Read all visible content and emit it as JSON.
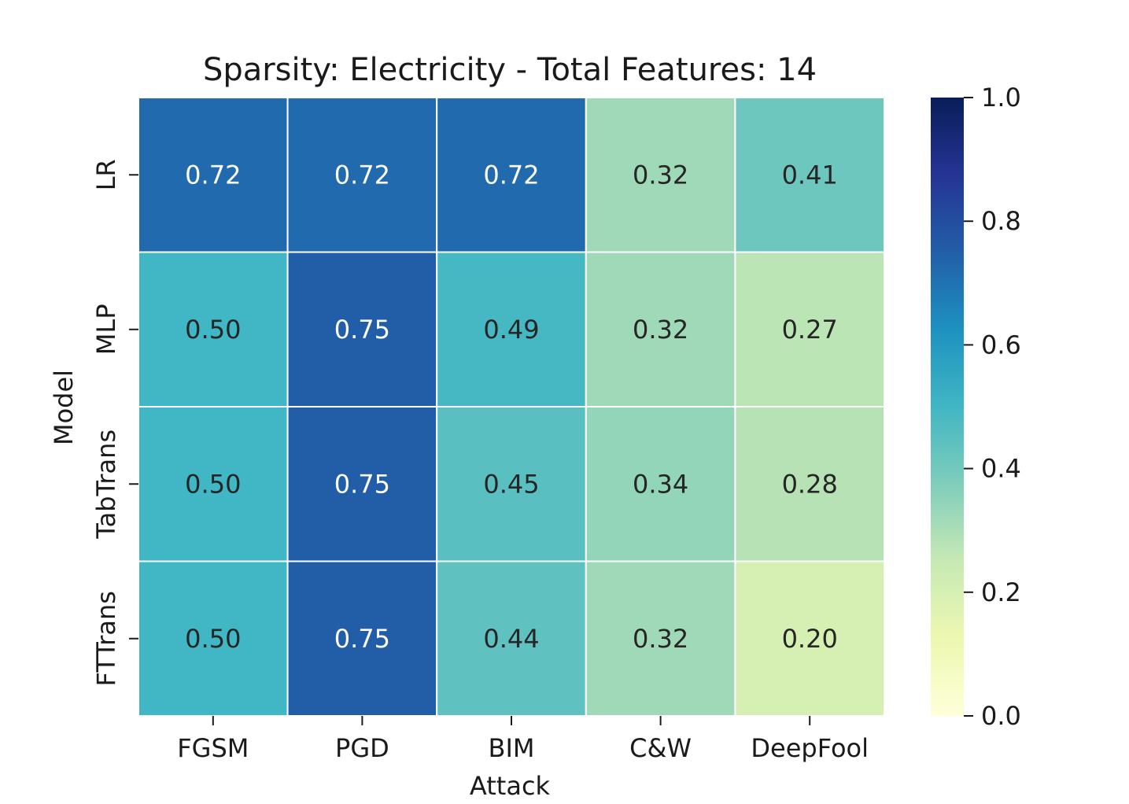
{
  "chart_data": {
    "type": "heatmap",
    "title": "Sparsity: Electricity - Total Features: 14",
    "xlabel": "Attack",
    "ylabel": "Model",
    "x_categories": [
      "FGSM",
      "PGD",
      "BIM",
      "C&W",
      "DeepFool"
    ],
    "y_categories": [
      "LR",
      "MLP",
      "TabTrans",
      "FTTrans"
    ],
    "values": [
      [
        0.72,
        0.72,
        0.72,
        0.32,
        0.41
      ],
      [
        0.5,
        0.75,
        0.49,
        0.32,
        0.27
      ],
      [
        0.5,
        0.75,
        0.45,
        0.34,
        0.28
      ],
      [
        0.5,
        0.75,
        0.44,
        0.32,
        0.2
      ]
    ],
    "value_labels": [
      [
        "0.72",
        "0.72",
        "0.72",
        "0.32",
        "0.41"
      ],
      [
        "0.50",
        "0.75",
        "0.49",
        "0.32",
        "0.27"
      ],
      [
        "0.50",
        "0.75",
        "0.45",
        "0.34",
        "0.28"
      ],
      [
        "0.50",
        "0.75",
        "0.44",
        "0.32",
        "0.20"
      ]
    ],
    "colorbar": {
      "range": [
        0.0,
        1.0
      ],
      "ticks": [
        "0.0",
        "0.2",
        "0.4",
        "0.6",
        "0.8",
        "1.0"
      ],
      "colormap": "YlGnBu"
    },
    "grid": true
  }
}
